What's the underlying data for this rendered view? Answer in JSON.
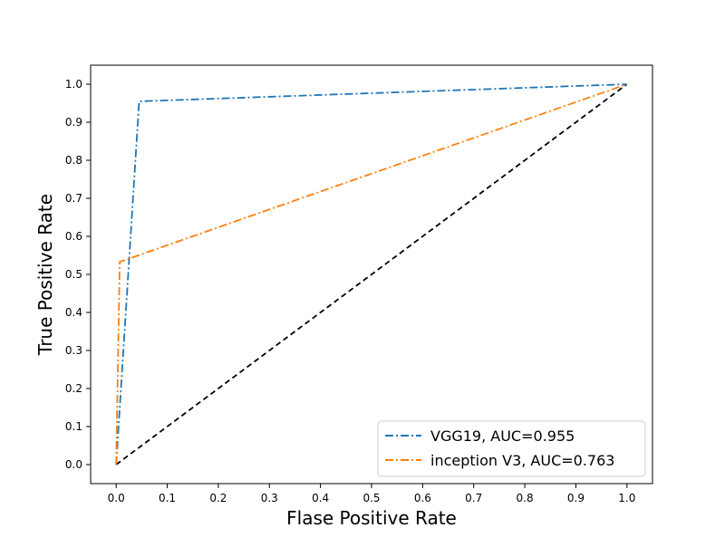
{
  "chart_data": {
    "type": "line",
    "title": "",
    "xlabel": "Flase Positive Rate",
    "ylabel": "True Positive Rate",
    "xlim": [
      -0.05,
      1.05
    ],
    "ylim": [
      -0.05,
      1.05
    ],
    "x_ticks": [
      0.0,
      0.1,
      0.2,
      0.3,
      0.4,
      0.5,
      0.6,
      0.7,
      0.8,
      0.9,
      1.0
    ],
    "y_ticks": [
      0.0,
      0.1,
      0.2,
      0.3,
      0.4,
      0.5,
      0.6,
      0.7,
      0.8,
      0.9,
      1.0
    ],
    "x_tick_labels": [
      "0.0",
      "0.1",
      "0.2",
      "0.3",
      "0.4",
      "0.5",
      "0.6",
      "0.7",
      "0.8",
      "0.9",
      "1.0"
    ],
    "y_tick_labels": [
      "0.0",
      "0.1",
      "0.2",
      "0.3",
      "0.4",
      "0.5",
      "0.6",
      "0.7",
      "0.8",
      "0.9",
      "1.0"
    ],
    "grid": false,
    "legend_position": "bottom-right",
    "series": [
      {
        "name": "VGG19, AUC=0.955",
        "color": "#1f77b4",
        "style": "dashdot",
        "x": [
          0.0,
          0.045,
          1.0
        ],
        "y": [
          0.0,
          0.955,
          1.0
        ]
      },
      {
        "name": "inception V3, AUC=0.763",
        "color": "#ff7f0e",
        "style": "dashdot",
        "x": [
          0.0,
          0.007,
          1.0
        ],
        "y": [
          0.0,
          0.533,
          1.0
        ]
      }
    ],
    "reference_line": {
      "color": "#000000",
      "style": "dashed",
      "x": [
        0.0,
        1.0
      ],
      "y": [
        0.0,
        1.0
      ]
    }
  }
}
